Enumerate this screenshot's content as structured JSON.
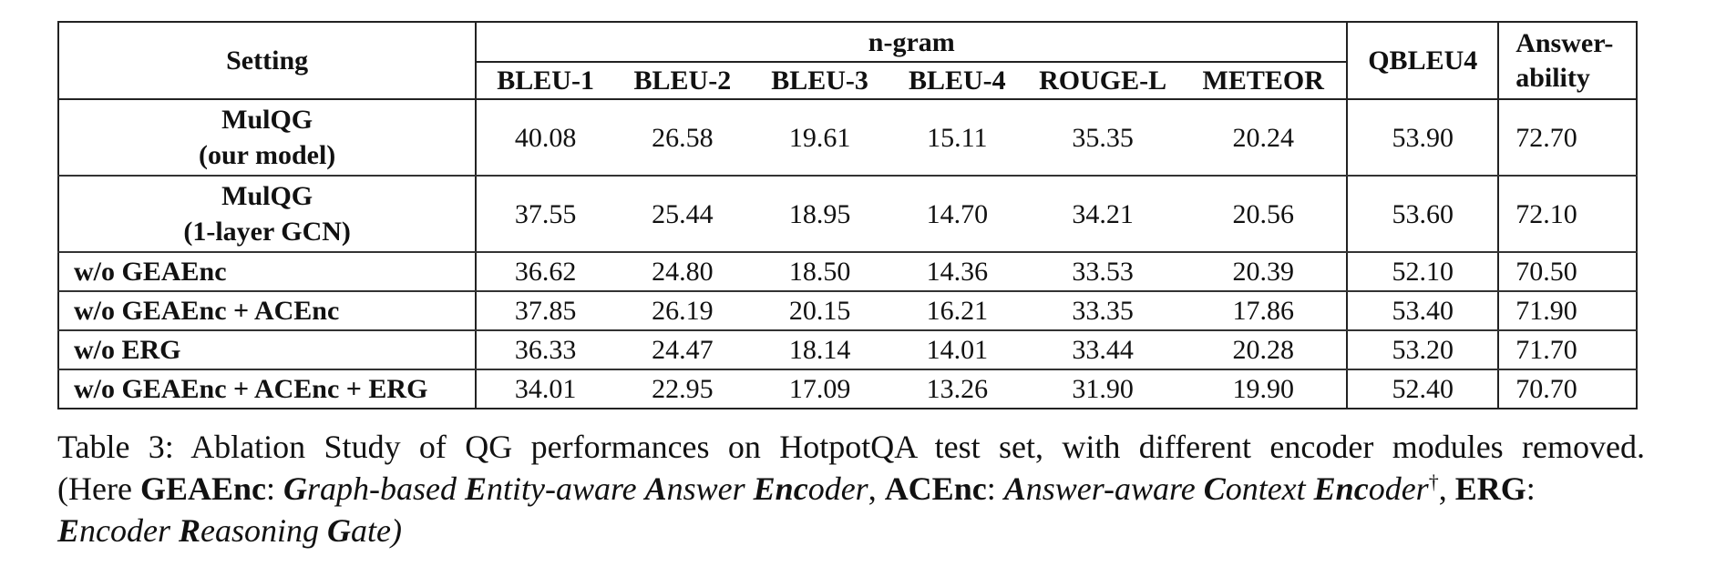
{
  "table": {
    "header": {
      "setting": "Setting",
      "ngram": "n-gram",
      "metrics": [
        "BLEU-1",
        "BLEU-2",
        "BLEU-3",
        "BLEU-4",
        "ROUGE-L",
        "METEOR"
      ],
      "qbleu": "QBLEU4",
      "answerability_1": "Answer-",
      "answerability_2": "ability"
    },
    "rows": [
      {
        "setting_1": "MulQG",
        "setting_2": "(our model)",
        "values": [
          "40.08",
          "26.58",
          "19.61",
          "15.11",
          "35.35",
          "20.24",
          "53.90",
          "72.70"
        ]
      },
      {
        "setting_1": "MulQG",
        "setting_2": "(1-layer GCN)",
        "values": [
          "37.55",
          "25.44",
          "18.95",
          "14.70",
          "34.21",
          "20.56",
          "53.60",
          "72.10"
        ]
      },
      {
        "setting_1": "w/o GEAEnc",
        "values": [
          "36.62",
          "24.80",
          "18.50",
          "14.36",
          "33.53",
          "20.39",
          "52.10",
          "70.50"
        ]
      },
      {
        "setting_1": "w/o GEAEnc + ACEnc",
        "values": [
          "37.85",
          "26.19",
          "20.15",
          "16.21",
          "33.35",
          "17.86",
          "53.40",
          "71.90"
        ]
      },
      {
        "setting_1": "w/o ERG",
        "values": [
          "36.33",
          "24.47",
          "18.14",
          "14.01",
          "33.44",
          "20.28",
          "53.20",
          "71.70"
        ]
      },
      {
        "setting_1": "w/o GEAEnc + ACEnc + ERG",
        "values": [
          "34.01",
          "22.95",
          "17.09",
          "13.26",
          "31.90",
          "19.90",
          "52.40",
          "70.70"
        ]
      }
    ]
  },
  "caption": {
    "line1": "Table 3:  Ablation Study of QG performances on HotpotQA test set, with different encoder modules removed.",
    "paren_open": "(Here ",
    "geaenc": "GEAEnc",
    "colon1": ": ",
    "g1": "G",
    "g1_rest": "raph-based ",
    "e1": "E",
    "e1_rest": "ntity-aware ",
    "a1": "A",
    "a1_rest": "nswer ",
    "enc1": "Enc",
    "enc1_rest": "oder",
    "comma1": ", ",
    "acenc": "ACEnc",
    "colon2": ": ",
    "a2": "A",
    "a2_rest": "nswer-aware ",
    "c2": "C",
    "c2_rest": "ontext ",
    "enc2": "Enc",
    "enc2_rest": "oder",
    "dagger": "†",
    "comma2": ", ",
    "erg": "ERG",
    "colon3": ":",
    "e3": "E",
    "e3_rest": "ncoder ",
    "r3": "R",
    "r3_rest": "easoning ",
    "g3": "G",
    "g3_rest": "ate)"
  }
}
